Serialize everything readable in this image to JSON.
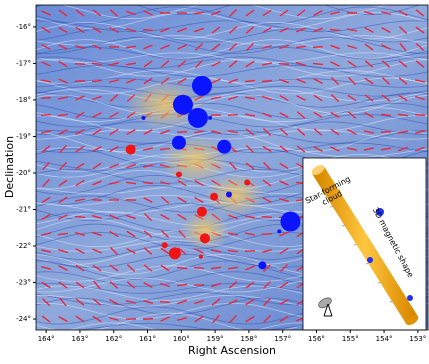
{
  "chart_data": {
    "type": "scatter",
    "x_label": "Right Ascension",
    "y_label": "Declination",
    "xlim": [
      164.3,
      152.7
    ],
    "ylim": [
      -24.3,
      -15.4
    ],
    "xticks": [
      {
        "value": 164,
        "label": "164°"
      },
      {
        "value": 163,
        "label": "163°"
      },
      {
        "value": 162,
        "label": "162°"
      },
      {
        "value": 161,
        "label": "161°"
      },
      {
        "value": 160,
        "label": "160°"
      },
      {
        "value": 159,
        "label": "159°"
      },
      {
        "value": 158,
        "label": "158°"
      },
      {
        "value": 157,
        "label": "157°"
      },
      {
        "value": 156,
        "label": "156°"
      },
      {
        "value": 155,
        "label": "155°"
      },
      {
        "value": 154,
        "label": "154°"
      },
      {
        "value": 153,
        "label": "153°"
      }
    ],
    "yticks": [
      {
        "value": -16,
        "label": "-16°"
      },
      {
        "value": -17,
        "label": "-17°"
      },
      {
        "value": -18,
        "label": "-18°"
      },
      {
        "value": -19,
        "label": "-19°"
      },
      {
        "value": -20,
        "label": "-20°"
      },
      {
        "value": -21,
        "label": "-21°"
      },
      {
        "value": -22,
        "label": "-22°"
      },
      {
        "value": -23,
        "label": "-23°"
      },
      {
        "value": -24,
        "label": "-24°"
      }
    ],
    "series": [
      {
        "color": "#0a14ff",
        "x": [
          159.39,
          159.95,
          159.51,
          160.07,
          158.73,
          159.15,
          161.12,
          156.77,
          157.6,
          157.1,
          158.59
        ],
        "values": [
          -17.61,
          -18.13,
          -18.49,
          -19.17,
          -19.28,
          -18.49,
          -18.49,
          -21.33,
          -22.53,
          -21.6,
          -20.59
        ],
        "sizes": [
          10,
          10,
          10,
          7,
          7,
          2,
          2,
          10,
          4,
          2,
          3
        ]
      },
      {
        "color": "#f01414",
        "x": [
          161.5,
          160.07,
          158.05,
          159.03,
          159.39,
          159.3,
          160.19,
          160.49,
          159.42
        ],
        "values": [
          -19.36,
          -20.04,
          -20.26,
          -20.65,
          -21.06,
          -21.79,
          -22.2,
          -21.98,
          -22.29
        ],
        "sizes": [
          5,
          3,
          3,
          4,
          5,
          5,
          6,
          3,
          2
        ]
      }
    ],
    "annotations": [
      "Star-forming cloud",
      "3D magnetic shape"
    ]
  }
}
